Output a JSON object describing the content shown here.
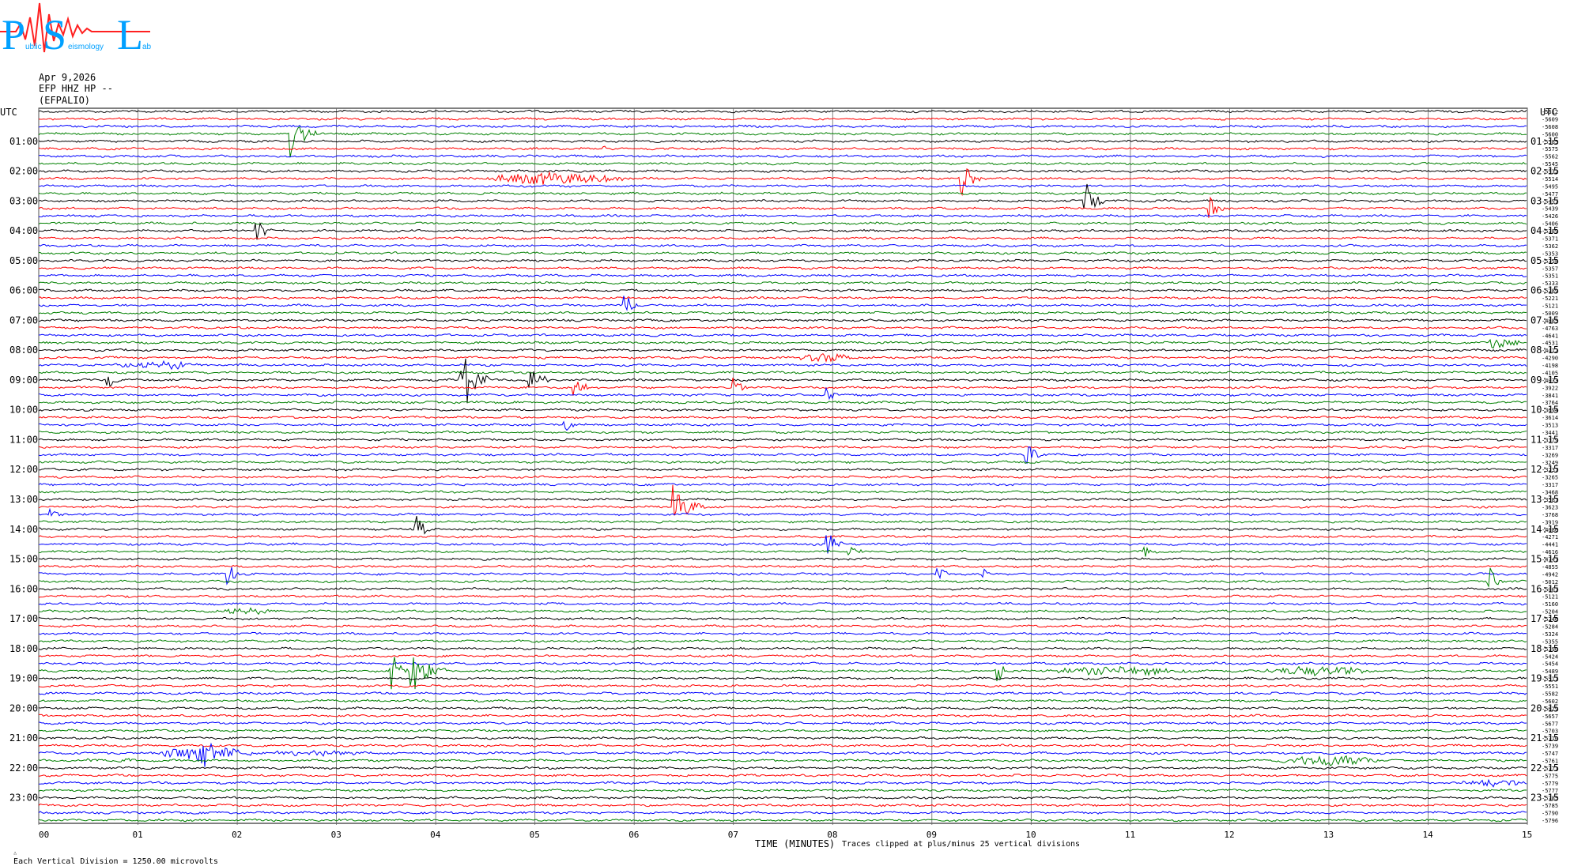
{
  "logo": {
    "letters": [
      "P",
      "S",
      "L"
    ],
    "subtitle": [
      "ublic",
      "eismology",
      "ab"
    ]
  },
  "header": {
    "date": "Apr 9,2026",
    "channel": "EFP HHZ HP --",
    "station": "(EFPALIO)"
  },
  "axis": {
    "left_label": "UTC",
    "right_label": "UTC",
    "x_title": "TIME (MINUTES)"
  },
  "footer": {
    "scale_note": "Each Vertical Division = 1250.00 microvolts",
    "clip_note": "Traces clipped at plus/minus 25 vertical divisions"
  },
  "colors": {
    "cycle": [
      "#000000",
      "#ff0000",
      "#0000ff",
      "#008000"
    ],
    "grid": "#000000",
    "logo_blue": "#00a0ff",
    "logo_red": "#ff2020"
  },
  "chart_data": {
    "type": "helicorder",
    "title": "",
    "xlabel": "TIME (MINUTES)",
    "ylabel": "UTC",
    "xlim": [
      0,
      15
    ],
    "x_ticks": [
      "00",
      "01",
      "02",
      "03",
      "04",
      "05",
      "06",
      "07",
      "08",
      "09",
      "10",
      "11",
      "12",
      "13",
      "14",
      "15"
    ],
    "left_hour_labels": [
      "01:00",
      "02:00",
      "03:00",
      "04:00",
      "05:00",
      "06:00",
      "07:00",
      "08:00",
      "09:00",
      "10:00",
      "11:00",
      "12:00",
      "13:00",
      "14:00",
      "15:00",
      "16:00",
      "17:00",
      "18:00",
      "19:00",
      "20:00",
      "21:00",
      "22:00",
      "23:00"
    ],
    "right_hour_labels": [
      "01:15",
      "02:15",
      "03:15",
      "04:15",
      "05:15",
      "06:15",
      "07:15",
      "08:15",
      "09:15",
      "10:15",
      "11:15",
      "12:15",
      "13:15",
      "14:15",
      "15:15",
      "16:15",
      "17:15",
      "18:15",
      "19:15",
      "20:15",
      "21:15",
      "22:15",
      "23:15"
    ],
    "trace_count": 96,
    "trace_minutes": 15,
    "trace_offsets": [
      -5612,
      -5609,
      -5608,
      -5600,
      -5585,
      -5575,
      -5562,
      -5545,
      -5532,
      -5514,
      -5495,
      -5477,
      -5457,
      -5439,
      -5426,
      -5406,
      -5389,
      -5371,
      -5362,
      -5353,
      -5358,
      -5357,
      -5351,
      -5333,
      -5289,
      -5221,
      -5121,
      -5009,
      -4885,
      -4763,
      -4641,
      -4531,
      -4412,
      -4290,
      -4198,
      -4105,
      -4033,
      -3922,
      -3841,
      -3764,
      -3694,
      -3614,
      -3513,
      -3441,
      -3379,
      -3317,
      -3269,
      -3249,
      -3237,
      -3265,
      -3317,
      -3468,
      -3587,
      -3623,
      -3768,
      -3919,
      -4086,
      -4271,
      -4441,
      -4616,
      -4747,
      -4855,
      -4942,
      -5012,
      -5067,
      -5121,
      -5160,
      -5204,
      -5246,
      -5284,
      -5324,
      -5355,
      -5390,
      -5424,
      -5454,
      -5489,
      -5517,
      -5551,
      -5582,
      -5602,
      -5629,
      -5657,
      -5677,
      -5703,
      -5710,
      -5739,
      -5747,
      -5761,
      -5771,
      -5775,
      -5779,
      -5777,
      -5785,
      -5785,
      -5790,
      -5796
    ],
    "events": [
      {
        "trace": 3,
        "minute": 2.55,
        "amp": 2.2,
        "dur": 0.25,
        "type": "spike"
      },
      {
        "trace": 5,
        "minute": 5.7,
        "amp": 0.3,
        "dur": 0.05,
        "type": "spike"
      },
      {
        "trace": 9,
        "minute": 4.4,
        "amp": 0.8,
        "dur": 1.6,
        "type": "burst"
      },
      {
        "trace": 9,
        "minute": 9.3,
        "amp": 2.0,
        "dur": 0.2,
        "type": "spike"
      },
      {
        "trace": 12,
        "minute": 10.55,
        "amp": 1.8,
        "dur": 0.2,
        "type": "spike"
      },
      {
        "trace": 13,
        "minute": 11.8,
        "amp": 1.3,
        "dur": 0.15,
        "type": "spike"
      },
      {
        "trace": 16,
        "minute": 2.2,
        "amp": 1.3,
        "dur": 0.15,
        "type": "spike"
      },
      {
        "trace": 26,
        "minute": 5.9,
        "amp": 1.3,
        "dur": 0.15,
        "type": "spike"
      },
      {
        "trace": 31,
        "minute": 14.6,
        "amp": 1.0,
        "dur": 0.35,
        "type": "spike"
      },
      {
        "trace": 33,
        "minute": 7.6,
        "amp": 0.6,
        "dur": 0.7,
        "type": "burst"
      },
      {
        "trace": 34,
        "minute": 0.7,
        "amp": 0.5,
        "dur": 1.0,
        "type": "burst"
      },
      {
        "trace": 36,
        "minute": 0.7,
        "amp": 1.3,
        "dur": 0.1,
        "type": "spike"
      },
      {
        "trace": 36,
        "minute": 4.25,
        "amp": 3.5,
        "dur": 0.3,
        "type": "spike"
      },
      {
        "trace": 36,
        "minute": 4.95,
        "amp": 1.5,
        "dur": 0.2,
        "type": "spike"
      },
      {
        "trace": 37,
        "minute": 5.4,
        "amp": 1.2,
        "dur": 0.15,
        "type": "spike"
      },
      {
        "trace": 37,
        "minute": 7.0,
        "amp": 0.9,
        "dur": 0.2,
        "type": "spike"
      },
      {
        "trace": 38,
        "minute": 7.95,
        "amp": 1.0,
        "dur": 0.1,
        "type": "spike"
      },
      {
        "trace": 42,
        "minute": 5.3,
        "amp": 0.7,
        "dur": 0.15,
        "type": "spike"
      },
      {
        "trace": 46,
        "minute": 9.95,
        "amp": 1.3,
        "dur": 0.15,
        "type": "spike"
      },
      {
        "trace": 53,
        "minute": 6.4,
        "amp": 2.0,
        "dur": 0.35,
        "type": "spike"
      },
      {
        "trace": 54,
        "minute": 0.1,
        "amp": 0.5,
        "dur": 0.15,
        "type": "spike"
      },
      {
        "trace": 56,
        "minute": 3.8,
        "amp": 1.5,
        "dur": 0.15,
        "type": "spike"
      },
      {
        "trace": 58,
        "minute": 7.95,
        "amp": 1.2,
        "dur": 0.15,
        "type": "spike"
      },
      {
        "trace": 59,
        "minute": 8.15,
        "amp": 1.0,
        "dur": 0.15,
        "type": "spike"
      },
      {
        "trace": 59,
        "minute": 11.15,
        "amp": 1.0,
        "dur": 0.15,
        "type": "spike"
      },
      {
        "trace": 62,
        "minute": 1.9,
        "amp": 1.2,
        "dur": 0.15,
        "type": "spike"
      },
      {
        "trace": 62,
        "minute": 9.05,
        "amp": 1.0,
        "dur": 0.1,
        "type": "spike"
      },
      {
        "trace": 62,
        "minute": 9.5,
        "amp": 0.8,
        "dur": 0.1,
        "type": "spike"
      },
      {
        "trace": 63,
        "minute": 14.6,
        "amp": 1.8,
        "dur": 0.15,
        "type": "spike"
      },
      {
        "trace": 67,
        "minute": 1.75,
        "amp": 0.5,
        "dur": 0.6,
        "type": "burst"
      },
      {
        "trace": 75,
        "minute": 3.55,
        "amp": 2.0,
        "dur": 0.2,
        "type": "spike"
      },
      {
        "trace": 75,
        "minute": 3.75,
        "amp": 2.2,
        "dur": 0.35,
        "type": "spike"
      },
      {
        "trace": 75,
        "minute": 9.65,
        "amp": 2.5,
        "dur": 0.1,
        "type": "spike"
      },
      {
        "trace": 75,
        "minute": 10.0,
        "amp": 0.5,
        "dur": 1.8,
        "type": "burst"
      },
      {
        "trace": 75,
        "minute": 12.2,
        "amp": 0.6,
        "dur": 1.3,
        "type": "burst"
      },
      {
        "trace": 86,
        "minute": 1.1,
        "amp": 0.9,
        "dur": 1.1,
        "type": "burst"
      },
      {
        "trace": 86,
        "minute": 1.6,
        "amp": 1.8,
        "dur": 0.35,
        "type": "spike"
      },
      {
        "trace": 86,
        "minute": 2.3,
        "amp": 0.4,
        "dur": 1.0,
        "type": "burst"
      },
      {
        "trace": 87,
        "minute": 0.4,
        "amp": 0.3,
        "dur": 0.6,
        "type": "burst"
      },
      {
        "trace": 87,
        "minute": 12.4,
        "amp": 0.7,
        "dur": 1.2,
        "type": "burst"
      },
      {
        "trace": 90,
        "minute": 14.3,
        "amp": 0.5,
        "dur": 0.7,
        "type": "burst"
      }
    ]
  }
}
